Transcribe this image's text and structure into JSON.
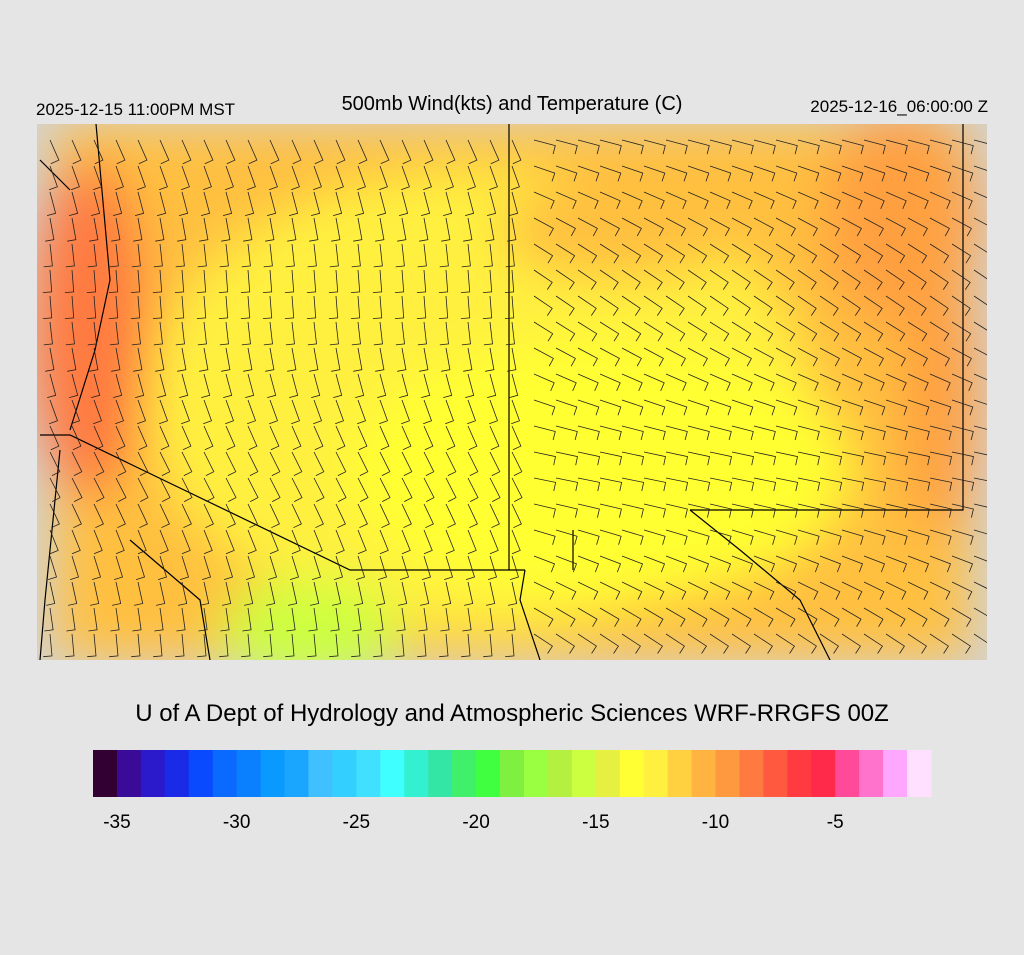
{
  "header": {
    "left": "2025-12-15 11:00PM MST",
    "title": "500mb Wind(kts) and Temperature (C)",
    "right": "2025-12-16_06:00:00 Z"
  },
  "credit": "U of A Dept of Hydrology and Atmospheric Sciences WRF-RRGFS 00Z",
  "colorbar": {
    "range": [
      -36,
      -1
    ],
    "colors": [
      "#330033",
      "#3a0a99",
      "#2a1acc",
      "#1a2ae6",
      "#0a4aff",
      "#0a6aff",
      "#0a80ff",
      "#0a99ff",
      "#1aa6ff",
      "#40c0ff",
      "#33d0ff",
      "#40e0ff",
      "#40ffff",
      "#33f0d0",
      "#33e6a6",
      "#40f06a",
      "#40ff40",
      "#80f040",
      "#99ff40",
      "#b3f040",
      "#ccff40",
      "#e6f040",
      "#ffff33",
      "#fff040",
      "#ffd040",
      "#ffb340",
      "#ff9940",
      "#ff7a40",
      "#ff5a40",
      "#ff3a40",
      "#ff2a4a",
      "#ff4a99",
      "#ff73cc",
      "#ffa6ff",
      "#ffe0ff"
    ],
    "ticks": [
      -35,
      -30,
      -25,
      -20,
      -15,
      -10,
      -5
    ]
  }
}
